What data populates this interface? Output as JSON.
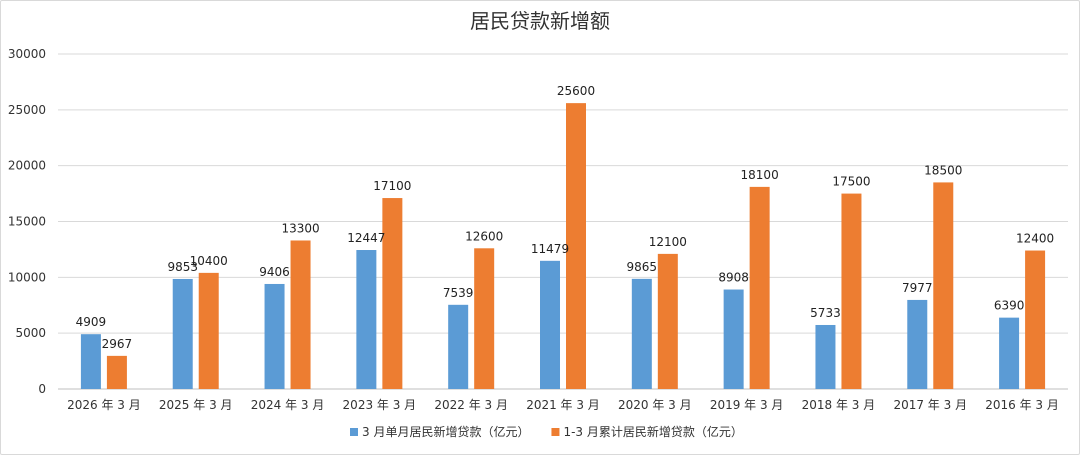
{
  "chart_data": {
    "type": "bar",
    "title": "居民贷款新增额",
    "categories": [
      "2026 年 3 月",
      "2025 年 3 月",
      "2024 年 3 月",
      "2023 年 3 月",
      "2022 年 3 月",
      "2021 年 3 月",
      "2020 年 3 月",
      "2019 年 3 月",
      "2018 年 3 月",
      "2017 年 3 月",
      "2016 年 3 月"
    ],
    "series": [
      {
        "name": "3 月单月居民新增贷款（亿元）",
        "color": "#5b9bd5",
        "values": [
          4909,
          9853,
          9406,
          12447,
          7539,
          11479,
          9865,
          8908,
          5733,
          7977,
          6390
        ]
      },
      {
        "name": "1-3 月累计居民新增贷款（亿元）",
        "color": "#ed7d31",
        "values": [
          2967,
          10400,
          13300,
          17100,
          12600,
          25600,
          12100,
          18100,
          17500,
          18500,
          12400
        ]
      }
    ],
    "ylim": [
      0,
      30000
    ],
    "yticks": [
      0,
      5000,
      10000,
      15000,
      20000,
      25000,
      30000
    ],
    "grid": true,
    "data_labels": true,
    "legend_position": "bottom"
  }
}
